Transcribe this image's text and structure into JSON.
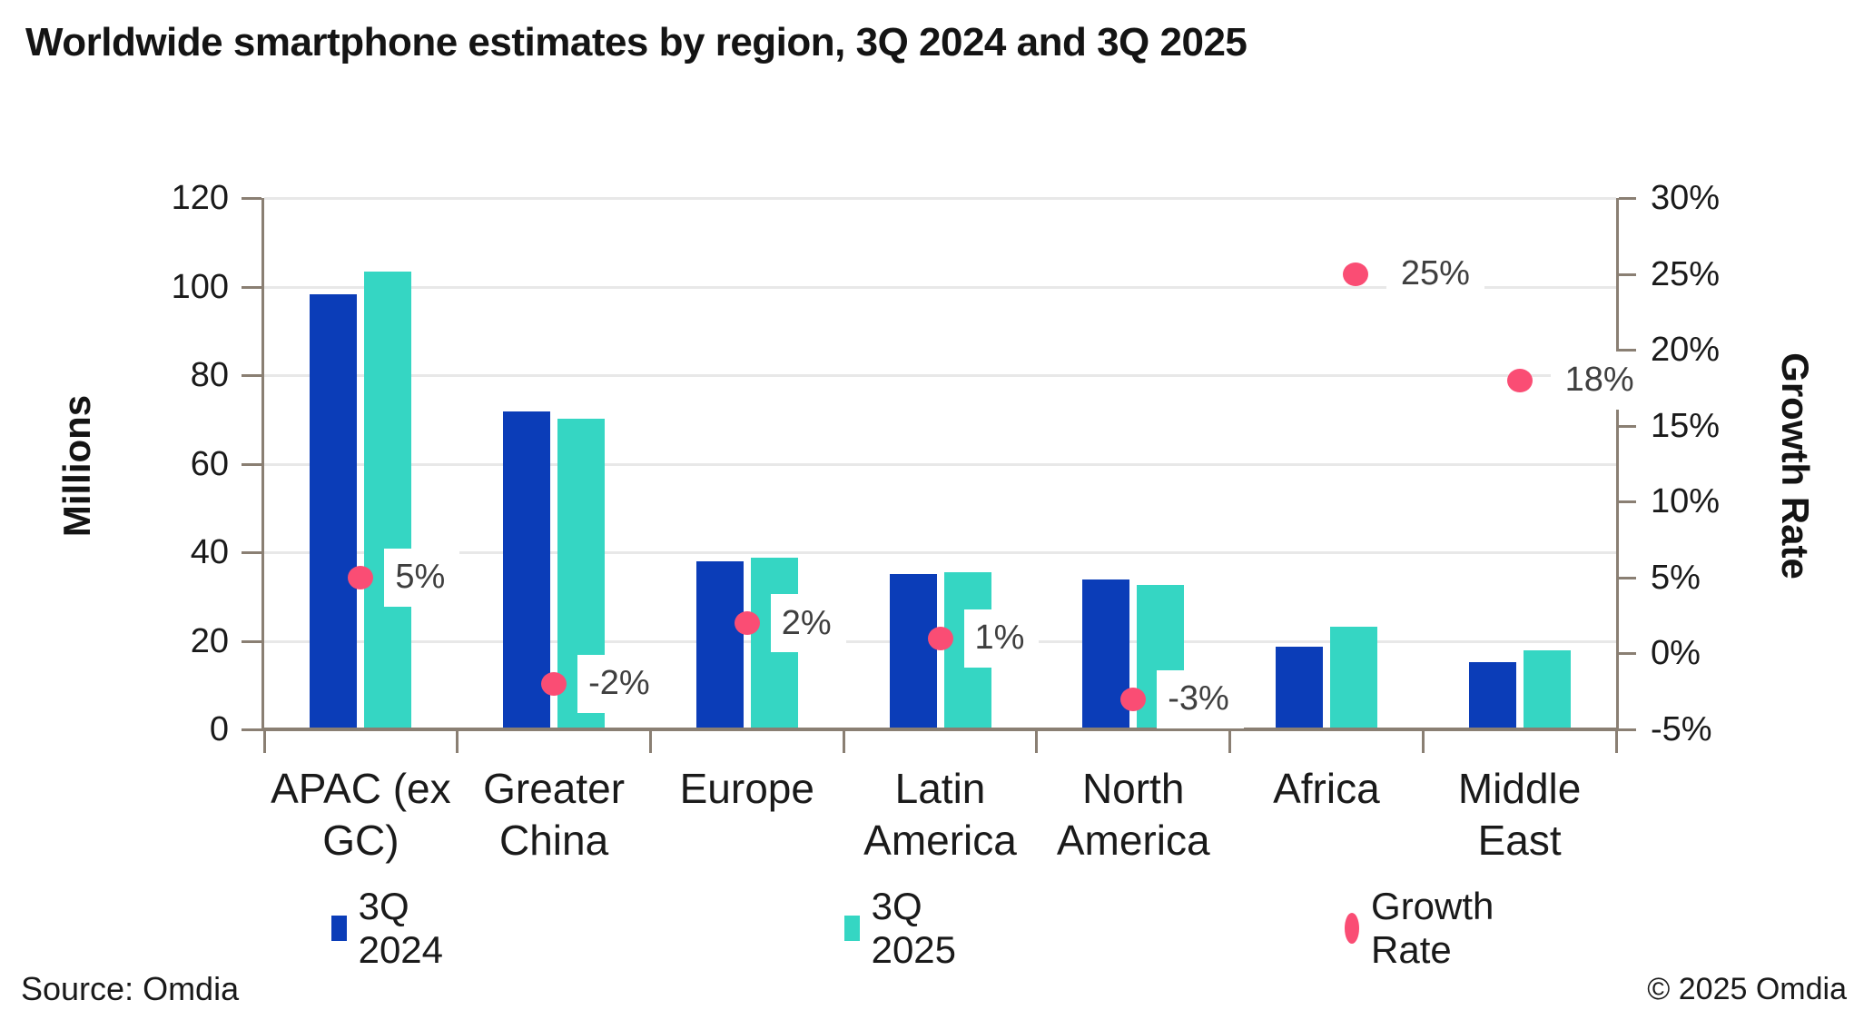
{
  "title": "Worldwide smartphone estimates by region, 3Q 2024 and 3Q 2025",
  "source_left": "Source: Omdia",
  "source_right": "© 2025 Omdia",
  "colors": {
    "q2024_blue": "#0b3db8",
    "q2025_teal": "#35d6c3",
    "growth_pink": "#fa4d74",
    "axis_line": "#8a7f73",
    "gridline": "#e8e8e8",
    "growth_label_text": "#3f3f3f",
    "text": "#1a1a1a"
  },
  "left_axis": {
    "title": "Millions",
    "ticks": [
      0,
      20,
      40,
      60,
      80,
      100,
      120
    ],
    "min": 0,
    "max": 120
  },
  "right_axis": {
    "title": "Growth Rate",
    "ticks": [
      "-5%",
      "0%",
      "5%",
      "10%",
      "15%",
      "20%",
      "25%",
      "30%"
    ],
    "tick_values": [
      -5,
      0,
      5,
      10,
      15,
      20,
      25,
      30
    ],
    "min": -5,
    "max": 30
  },
  "legend": [
    {
      "label": "3Q 2024",
      "marker": "square",
      "color": "#0b3db8"
    },
    {
      "label": "3Q 2025",
      "marker": "square",
      "color": "#35d6c3"
    },
    {
      "label": "Growth Rate",
      "marker": "dot",
      "color": "#fa4d74"
    }
  ],
  "chart_data": {
    "type": "bar",
    "subtype": "grouped bars with secondary-axis scatter (growth rate)",
    "title": "Worldwide smartphone estimates by region, 3Q 2024 and 3Q 2025",
    "categories": [
      "APAC (ex GC)",
      "Greater China",
      "Europe",
      "Latin America",
      "North America",
      "Africa",
      "Middle East"
    ],
    "category_label_lines": [
      [
        "APAC (ex",
        "GC)"
      ],
      [
        "Greater",
        "China"
      ],
      [
        "Europe"
      ],
      [
        "Latin",
        "America"
      ],
      [
        "North",
        "America"
      ],
      [
        "Africa"
      ],
      [
        "Middle",
        "East"
      ]
    ],
    "series": [
      {
        "name": "3Q 2024",
        "axis": "left",
        "unit": "millions",
        "values": [
          98.3,
          71.9,
          38.0,
          35.0,
          33.8,
          18.6,
          15.1
        ]
      },
      {
        "name": "3Q 2025",
        "axis": "left",
        "unit": "millions",
        "values": [
          103.4,
          70.2,
          38.7,
          35.4,
          32.7,
          23.2,
          17.8
        ]
      },
      {
        "name": "Growth Rate",
        "axis": "right",
        "unit": "percent",
        "values": [
          5,
          -2,
          2,
          1,
          -3,
          25,
          18
        ],
        "labels": [
          "5%",
          "-2%",
          "2%",
          "1%",
          "-3%",
          "25%",
          "18%"
        ]
      }
    ],
    "xlabel": "",
    "ylabel_left": "Millions",
    "ylabel_right": "Growth Rate",
    "ylim_left": [
      0,
      120
    ],
    "ylim_right": [
      -5,
      30
    ],
    "grid": "horizontal only",
    "legend_position": "bottom"
  }
}
